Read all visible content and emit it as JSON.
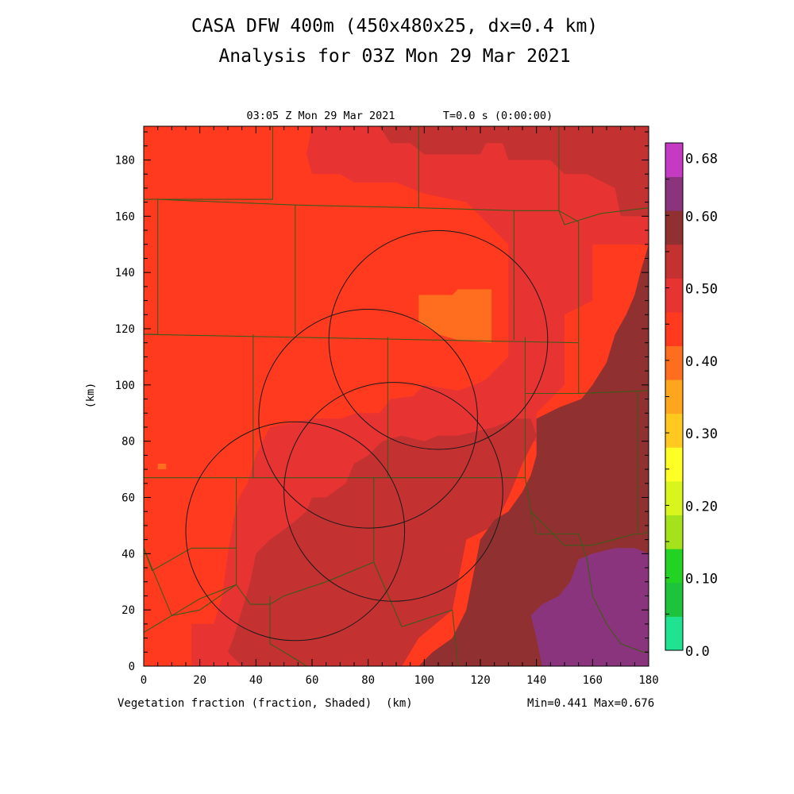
{
  "header": {
    "title_line1": "CASA DFW 400m (450x480x25, dx=0.4 km)",
    "title_line2": "Analysis for 03Z Mon 29 Mar 2021",
    "time_label": "03:05 Z Mon 29 Mar 2021",
    "time_step": "T=0.0 s (0:00:00)"
  },
  "footer": {
    "field_label": "Vegetation fraction (fraction, Shaded)",
    "x_unit": "(km)",
    "min_max": "Min=0.441 Max=0.676"
  },
  "chart_data": {
    "type": "heatmap",
    "variable": "Vegetation fraction",
    "units": "fraction",
    "x_unit": "(km)",
    "y_unit": "(km)",
    "xlim": [
      0,
      180
    ],
    "ylim": [
      0,
      192
    ],
    "x_ticks": [
      0,
      20,
      40,
      60,
      80,
      100,
      120,
      140,
      160,
      180
    ],
    "y_ticks": [
      0,
      20,
      40,
      60,
      80,
      100,
      120,
      140,
      160,
      180
    ],
    "min": 0.441,
    "max": 0.676,
    "colorbar": {
      "levels": [
        0.0,
        0.05,
        0.1,
        0.15,
        0.2,
        0.25,
        0.3,
        0.35,
        0.4,
        0.45,
        0.5,
        0.55,
        0.6,
        0.65,
        0.7
      ],
      "labels": [
        "0.0",
        "0.10",
        "0.20",
        "0.30",
        "0.40",
        "0.50",
        "0.60",
        "0.68"
      ],
      "label_values": [
        0.0,
        0.1,
        0.2,
        0.3,
        0.4,
        0.5,
        0.6,
        0.68
      ],
      "colors": [
        "#1fe391",
        "#1dc33a",
        "#23d323",
        "#a4e31c",
        "#d8f51d",
        "#ffff26",
        "#ffc91f",
        "#ffa51e",
        "#ff6d1f",
        "#ff3a1e",
        "#e83333",
        "#c43131",
        "#913030",
        "#8a347e",
        "#c53ac3"
      ]
    },
    "regions": [
      {
        "value": 0.47,
        "bin": "0.45-0.50",
        "points": [
          [
            0,
            0
          ],
          [
            180,
            0
          ],
          [
            180,
            192
          ],
          [
            0,
            192
          ]
        ]
      },
      {
        "value": 0.52,
        "bin": "0.50-0.55",
        "points": [
          [
            84,
            192
          ],
          [
            180,
            192
          ],
          [
            180,
            150
          ],
          [
            160,
            150
          ],
          [
            160,
            130
          ],
          [
            150,
            125
          ],
          [
            150,
            100
          ],
          [
            140,
            90
          ],
          [
            140,
            80
          ],
          [
            130,
            80
          ],
          [
            125,
            50
          ],
          [
            115,
            45
          ],
          [
            110,
            20
          ],
          [
            98,
            10
          ],
          [
            92,
            0
          ],
          [
            17,
            0
          ],
          [
            17,
            15
          ],
          [
            25,
            15
          ],
          [
            28,
            25
          ],
          [
            30,
            40
          ],
          [
            32,
            52
          ],
          [
            34,
            60
          ],
          [
            37,
            65
          ],
          [
            40,
            75
          ],
          [
            45,
            85
          ],
          [
            60,
            88
          ],
          [
            70,
            88
          ],
          [
            76,
            90
          ],
          [
            84,
            90
          ],
          [
            88,
            95
          ],
          [
            96,
            96
          ],
          [
            100,
            100
          ],
          [
            112,
            98
          ],
          [
            118,
            100
          ],
          [
            122,
            102
          ],
          [
            130,
            110
          ],
          [
            130,
            150
          ],
          [
            120,
            160
          ],
          [
            115,
            165
          ],
          [
            100,
            168
          ],
          [
            90,
            172
          ],
          [
            75,
            172
          ],
          [
            70,
            175
          ],
          [
            60,
            175
          ],
          [
            58,
            182
          ],
          [
            60,
            192
          ]
        ]
      },
      {
        "value": 0.56,
        "bin": "0.55-0.60",
        "points": [
          [
            84,
            192
          ],
          [
            180,
            192
          ],
          [
            180,
            160
          ],
          [
            170,
            160
          ],
          [
            168,
            170
          ],
          [
            158,
            175
          ],
          [
            150,
            175
          ],
          [
            145,
            180
          ],
          [
            130,
            180
          ],
          [
            128,
            186
          ],
          [
            122,
            186
          ],
          [
            120,
            182
          ],
          [
            100,
            182
          ],
          [
            95,
            186
          ],
          [
            88,
            186
          ]
        ]
      },
      {
        "value": 0.56,
        "bin": "0.55-0.60",
        "points": [
          [
            35,
            0
          ],
          [
            92,
            0
          ],
          [
            98,
            10
          ],
          [
            110,
            20
          ],
          [
            115,
            45
          ],
          [
            125,
            50
          ],
          [
            130,
            60
          ],
          [
            135,
            72
          ],
          [
            140,
            82
          ],
          [
            138,
            88
          ],
          [
            132,
            88
          ],
          [
            125,
            85
          ],
          [
            112,
            82
          ],
          [
            105,
            82
          ],
          [
            100,
            80
          ],
          [
            92,
            82
          ],
          [
            85,
            80
          ],
          [
            80,
            75
          ],
          [
            75,
            72
          ],
          [
            72,
            65
          ],
          [
            65,
            60
          ],
          [
            60,
            60
          ],
          [
            58,
            55
          ],
          [
            52,
            50
          ],
          [
            45,
            45
          ],
          [
            40,
            40
          ],
          [
            38,
            30
          ],
          [
            35,
            20
          ],
          [
            32,
            10
          ],
          [
            30,
            5
          ]
        ]
      },
      {
        "value": 0.63,
        "bin": "0.60-0.65",
        "points": [
          [
            180,
            150
          ],
          [
            180,
            0
          ],
          [
            98,
            0
          ],
          [
            103,
            5
          ],
          [
            110,
            10
          ],
          [
            115,
            20
          ],
          [
            118,
            35
          ],
          [
            120,
            45
          ],
          [
            125,
            52
          ],
          [
            130,
            55
          ],
          [
            135,
            62
          ],
          [
            138,
            68
          ],
          [
            140,
            75
          ],
          [
            140,
            88
          ],
          [
            148,
            92
          ],
          [
            156,
            95
          ],
          [
            160,
            100
          ],
          [
            165,
            108
          ],
          [
            168,
            118
          ],
          [
            172,
            125
          ],
          [
            175,
            132
          ],
          [
            177,
            140
          ]
        ]
      },
      {
        "value": 0.67,
        "bin": "0.65-0.70",
        "points": [
          [
            180,
            40
          ],
          [
            180,
            0
          ],
          [
            142,
            0
          ],
          [
            140,
            10
          ],
          [
            138,
            18
          ],
          [
            142,
            22
          ],
          [
            148,
            25
          ],
          [
            152,
            30
          ],
          [
            155,
            38
          ],
          [
            160,
            40
          ],
          [
            168,
            42
          ],
          [
            175,
            42
          ]
        ]
      },
      {
        "value": 0.43,
        "bin": "0.40-0.45",
        "points": [
          [
            98,
            132
          ],
          [
            110,
            132
          ],
          [
            112,
            134
          ],
          [
            124,
            134
          ],
          [
            124,
            115
          ],
          [
            112,
            116
          ],
          [
            105,
            118
          ],
          [
            98,
            122
          ]
        ]
      },
      {
        "value": 0.43,
        "bin": "0.40-0.45",
        "points": [
          [
            5,
            70
          ],
          [
            8,
            70
          ],
          [
            8,
            72
          ],
          [
            5,
            72
          ]
        ]
      }
    ],
    "radar_circles": [
      {
        "center": [
          105,
          116
        ],
        "radius_km": 39
      },
      {
        "center": [
          80,
          88
        ],
        "radius_km": 39
      },
      {
        "center": [
          89,
          62
        ],
        "radius_km": 39
      },
      {
        "center": [
          54,
          48
        ],
        "radius_km": 39
      }
    ],
    "county_borders": [
      [
        [
          0,
          166
        ],
        [
          46,
          166
        ],
        [
          46,
          192
        ]
      ],
      [
        [
          5,
          166
        ],
        [
          5,
          118
        ],
        [
          0,
          118
        ]
      ],
      [
        [
          0,
          118
        ],
        [
          155,
          115
        ]
      ],
      [
        [
          5,
          166
        ],
        [
          54,
          164
        ],
        [
          54,
          118
        ]
      ],
      [
        [
          54,
          164
        ],
        [
          98,
          163
        ],
        [
          98,
          192
        ]
      ],
      [
        [
          98,
          163
        ],
        [
          132,
          162
        ],
        [
          132,
          116
        ]
      ],
      [
        [
          132,
          162
        ],
        [
          148,
          162
        ],
        [
          148,
          192
        ]
      ],
      [
        [
          148,
          162
        ],
        [
          150,
          157
        ],
        [
          163,
          161
        ],
        [
          180,
          163
        ]
      ],
      [
        [
          148,
          162
        ],
        [
          155,
          158
        ],
        [
          155,
          97
        ],
        [
          180,
          98
        ]
      ],
      [
        [
          39,
          118
        ],
        [
          39,
          67
        ],
        [
          0,
          67
        ]
      ],
      [
        [
          87,
          117
        ],
        [
          87,
          67
        ]
      ],
      [
        [
          39,
          67
        ],
        [
          136,
          67
        ]
      ],
      [
        [
          136,
          117
        ],
        [
          136,
          67
        ],
        [
          138,
          55
        ],
        [
          145,
          48
        ],
        [
          150,
          43
        ],
        [
          160,
          43
        ],
        [
          175,
          47
        ],
        [
          178,
          47
        ],
        [
          180,
          48
        ]
      ],
      [
        [
          136,
          97
        ],
        [
          155,
          97
        ]
      ],
      [
        [
          138,
          55
        ],
        [
          140,
          47
        ],
        [
          147,
          47
        ],
        [
          155,
          47
        ],
        [
          158,
          38
        ],
        [
          160,
          25
        ],
        [
          165,
          15
        ],
        [
          170,
          8
        ],
        [
          178,
          5
        ],
        [
          180,
          5
        ]
      ],
      [
        [
          176,
          98
        ],
        [
          176,
          48
        ]
      ],
      [
        [
          33,
          67
        ],
        [
          33,
          29
        ],
        [
          20,
          20
        ],
        [
          10,
          18
        ],
        [
          0,
          12
        ]
      ],
      [
        [
          33,
          29
        ],
        [
          38,
          22
        ],
        [
          45,
          22
        ],
        [
          50,
          25
        ],
        [
          65,
          30
        ],
        [
          82,
          37
        ],
        [
          92,
          14
        ],
        [
          110,
          20
        ],
        [
          112,
          0
        ]
      ],
      [
        [
          82,
          37
        ],
        [
          82,
          67
        ]
      ],
      [
        [
          0,
          42
        ],
        [
          10,
          18
        ],
        [
          20,
          24
        ],
        [
          33,
          29
        ]
      ],
      [
        [
          0,
          42
        ],
        [
          3,
          34
        ],
        [
          17,
          42
        ],
        [
          33,
          42
        ]
      ],
      [
        [
          45,
          25
        ],
        [
          45,
          8
        ],
        [
          50,
          5
        ],
        [
          55,
          2
        ],
        [
          58,
          0
        ]
      ]
    ]
  }
}
